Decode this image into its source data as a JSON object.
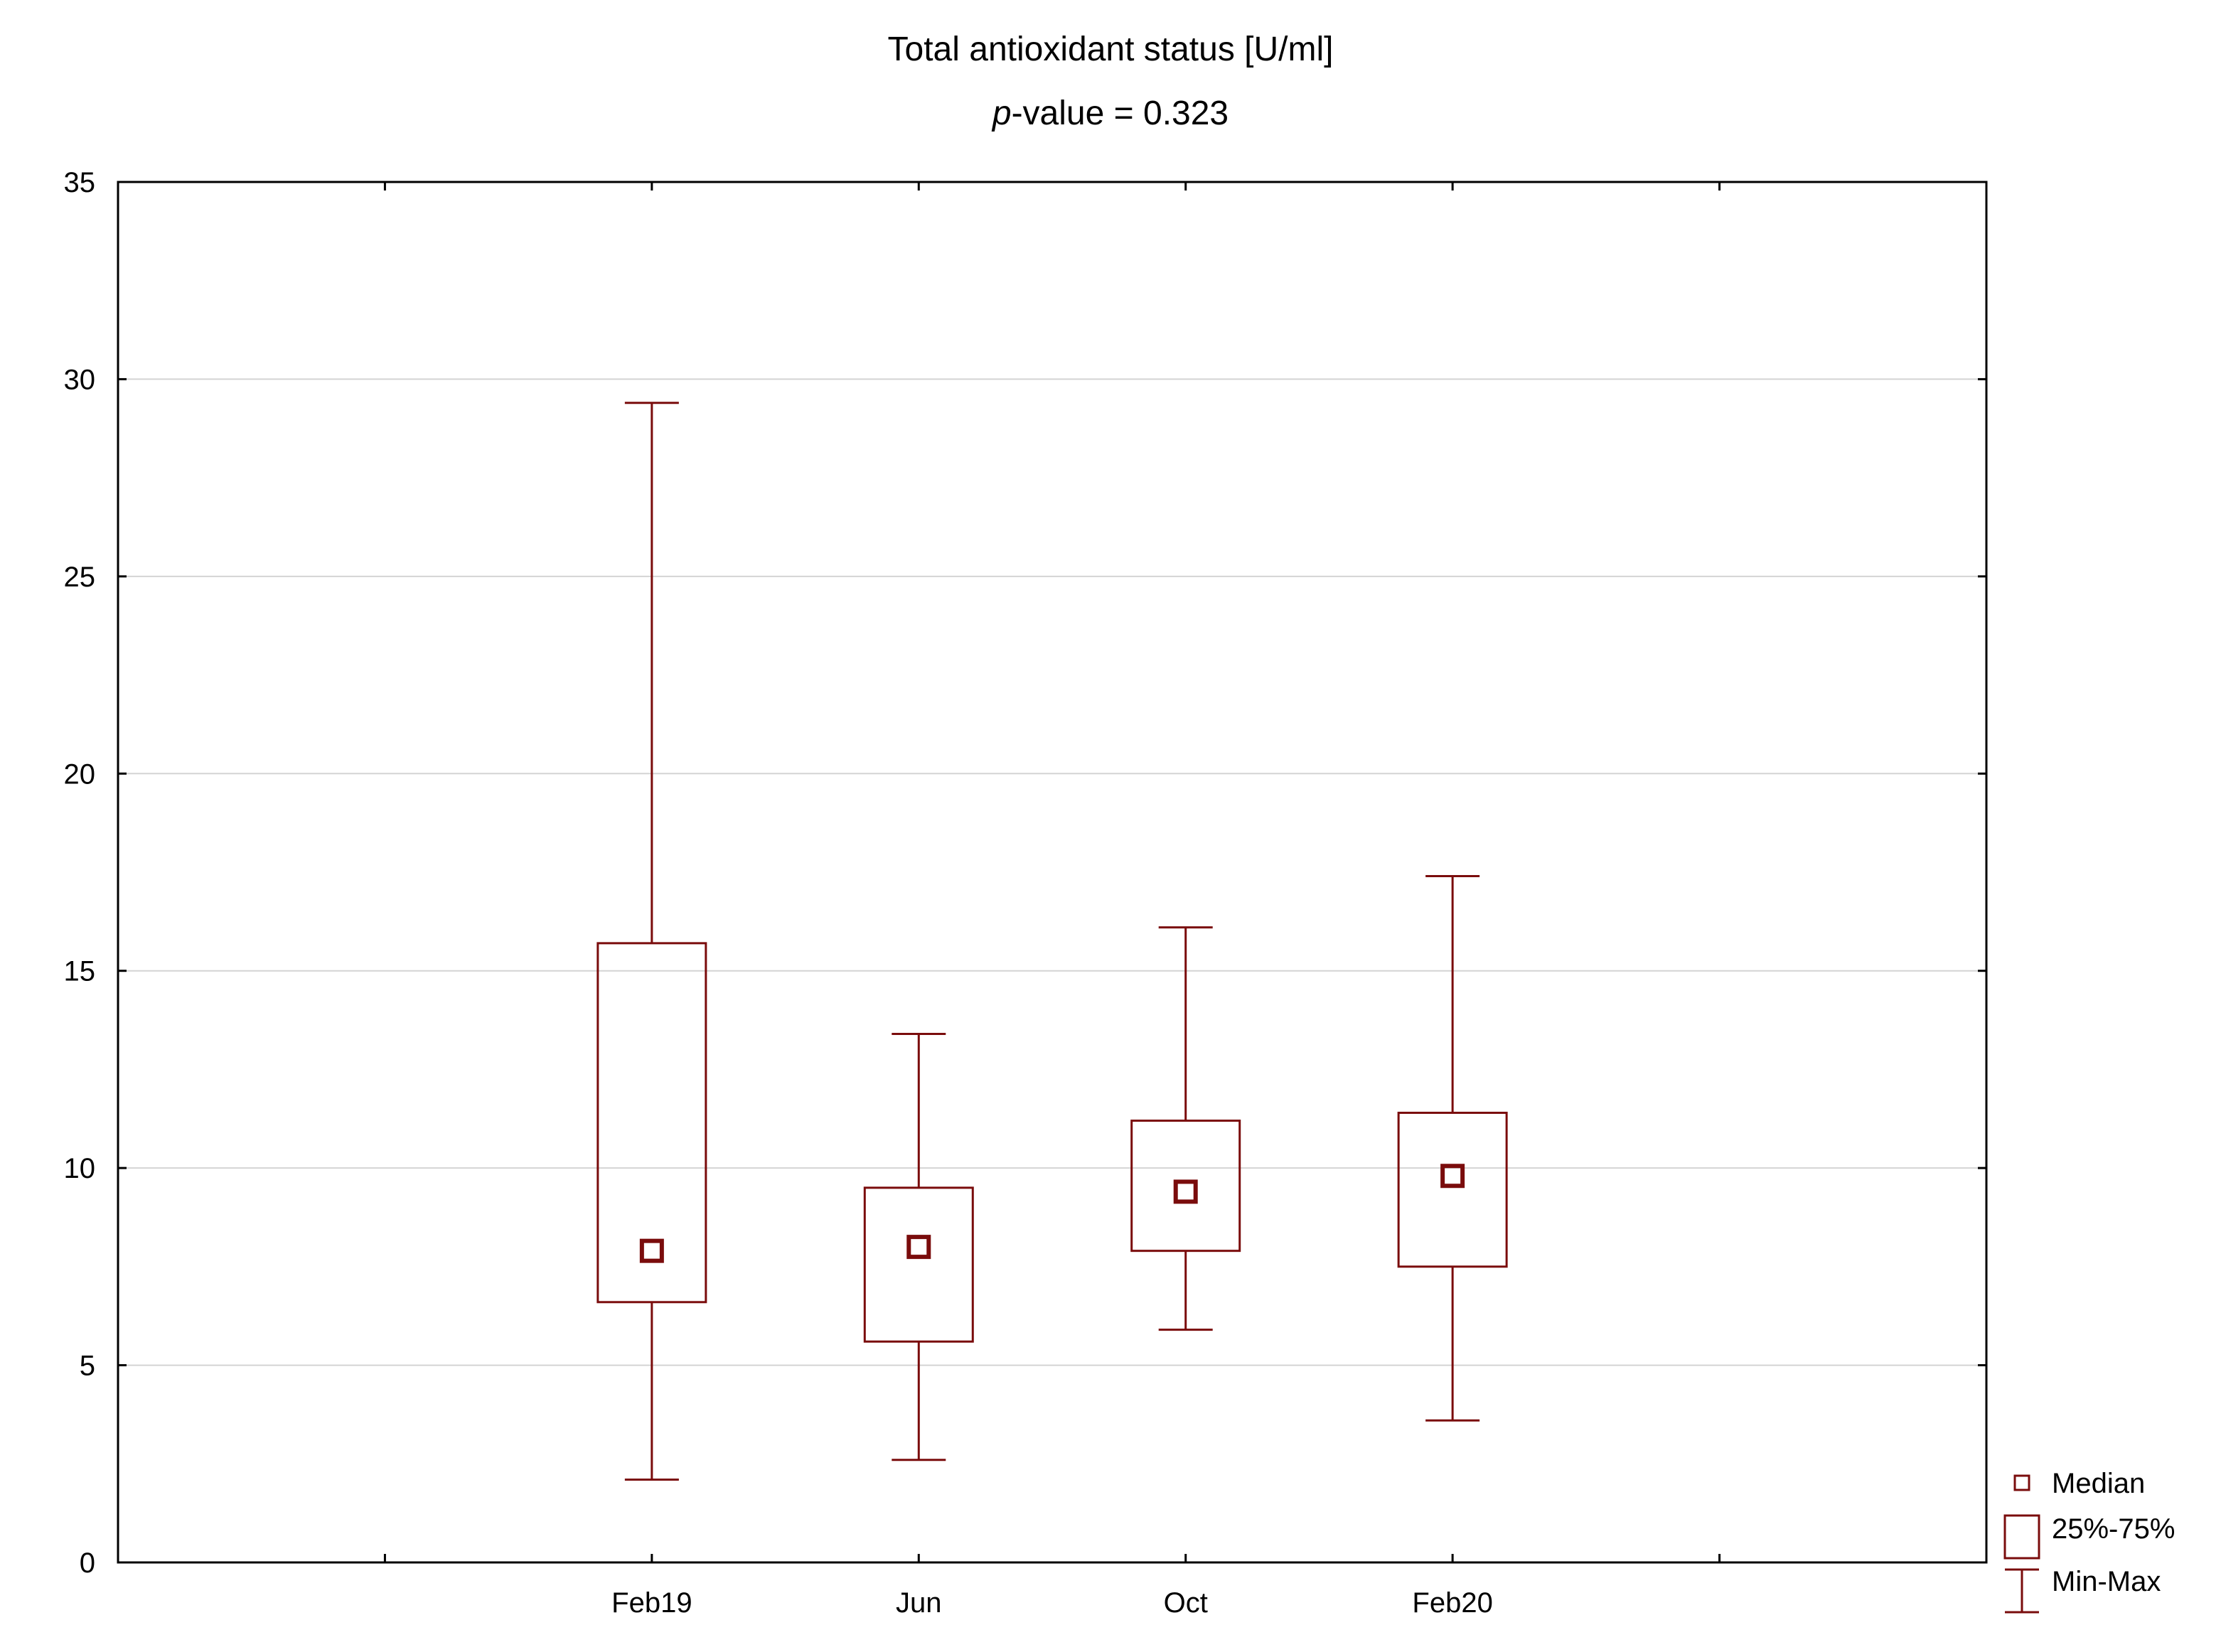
{
  "chart_data": {
    "type": "boxplot",
    "title": "Total antioxidant status [U/ml]",
    "subtitle_italic": "p",
    "subtitle_rest": "-value = 0.323",
    "xlabel": "",
    "ylabel": "",
    "ylim": [
      0,
      35
    ],
    "yticks": [
      0,
      5,
      10,
      15,
      20,
      25,
      30,
      35
    ],
    "categories": [
      "Feb19",
      "Jun",
      "Oct",
      "Feb20"
    ],
    "grid": "horizontal",
    "legend_position": "bottom-right",
    "legend": [
      "Median",
      "25%-75%",
      "Min-Max"
    ],
    "colors": {
      "series": "#7a0c0c",
      "grid": "#d4d4d4",
      "axis": "#000000"
    },
    "boxes": [
      {
        "category": "Feb19",
        "min": 2.1,
        "q1": 6.6,
        "median": 7.9,
        "q3": 15.7,
        "max": 29.4
      },
      {
        "category": "Jun",
        "min": 2.6,
        "q1": 5.6,
        "median": 8.0,
        "q3": 9.5,
        "max": 13.4
      },
      {
        "category": "Oct",
        "min": 5.9,
        "q1": 7.9,
        "median": 9.4,
        "q3": 11.2,
        "max": 16.1
      },
      {
        "category": "Feb20",
        "min": 3.6,
        "q1": 7.5,
        "median": 9.8,
        "q3": 11.4,
        "max": 17.4
      }
    ]
  }
}
